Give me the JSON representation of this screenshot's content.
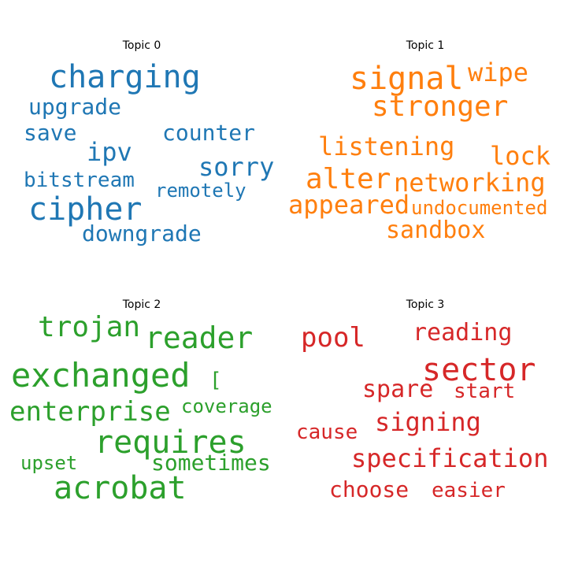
{
  "colors": {
    "topic0": "#1f77b4",
    "topic1": "#ff7f0e",
    "topic2": "#2ca02c",
    "topic3": "#d62728"
  },
  "topics": [
    {
      "title": "Topic 0",
      "words": [
        "charging",
        "upgrade",
        "save",
        "counter",
        "ipv",
        "sorry",
        "bitstream",
        "remotely",
        "cipher",
        "downgrade"
      ]
    },
    {
      "title": "Topic 1",
      "words": [
        "signal",
        "wipe",
        "stronger",
        "listening",
        "lock",
        "alter",
        "networking",
        "appeared",
        "undocumented",
        "sandbox"
      ]
    },
    {
      "title": "Topic 2",
      "words": [
        "trojan",
        "reader",
        "exchanged",
        "[",
        "enterprise",
        "coverage",
        "requires",
        "upset",
        "sometimes",
        "acrobat"
      ]
    },
    {
      "title": "Topic 3",
      "words": [
        "pool",
        "reading",
        "sector",
        "spare",
        "start",
        "signing",
        "cause",
        "specification",
        "choose",
        "easier"
      ]
    }
  ]
}
